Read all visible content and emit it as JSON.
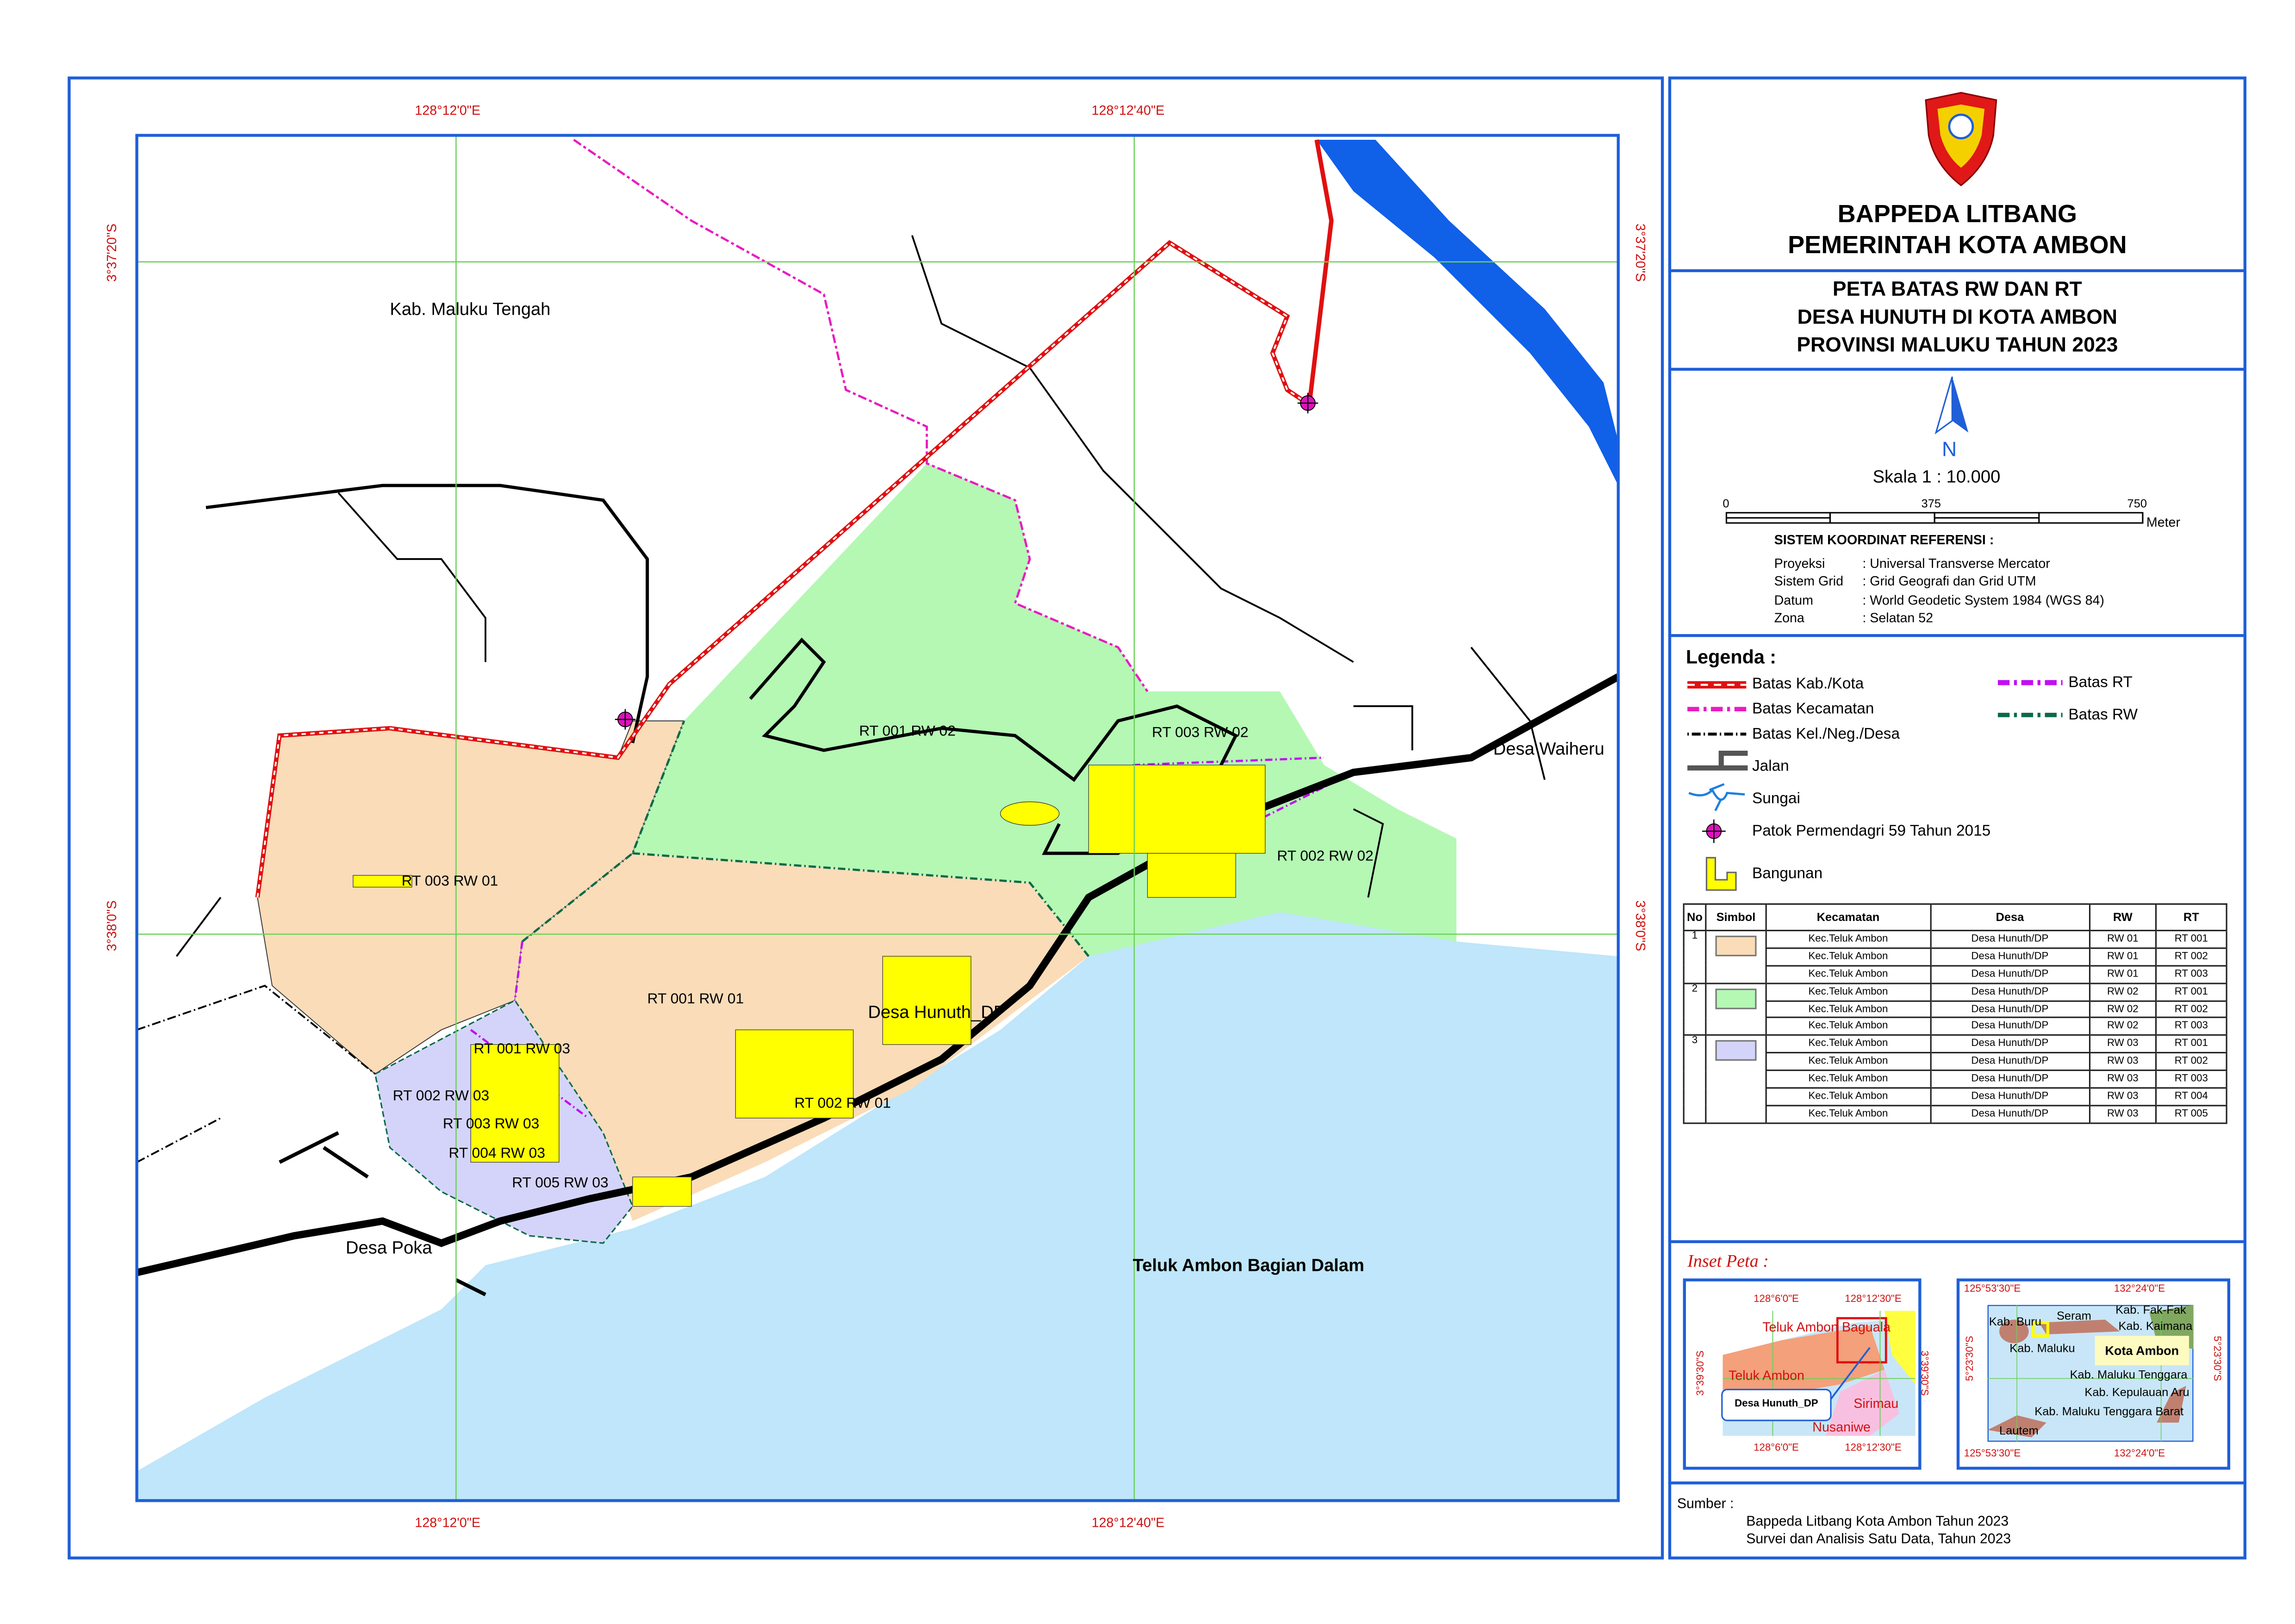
{
  "header": {
    "org_line1": "BAPPEDA LITBANG",
    "org_line2": "PEMERINTAH KOTA AMBON",
    "title_line1": "PETA BATAS RW DAN RT",
    "title_line2": "DESA HUNUTH DI KOTA AMBON",
    "title_line3": "PROVINSI MALUKU TAHUN 2023"
  },
  "north_arrow": {
    "label": "N"
  },
  "scale": {
    "text": "Skala 1 : 10.000",
    "ticks": [
      "0",
      "375",
      "750"
    ],
    "unit": "Meter"
  },
  "coord_system": {
    "heading": "SISTEM KOORDINAT REFERENSI :",
    "rows": [
      {
        "key": "Proyeksi",
        "value": ": Universal Transverse Mercator"
      },
      {
        "key": "Sistem Grid",
        "value": ": Grid Geografi dan Grid UTM"
      },
      {
        "key": "Datum",
        "value": ": World Geodetic System 1984 (WGS 84)"
      },
      {
        "key": "Zona",
        "value": ": Selatan 52"
      }
    ]
  },
  "legend": {
    "heading": "Legenda :",
    "items": [
      {
        "label": "Batas Kab./Kota",
        "icon": "red-dashed-line",
        "color": "#e01010"
      },
      {
        "label": "Batas Kecamatan",
        "icon": "magenta-dash-dot-line",
        "color": "#e81cc0"
      },
      {
        "label": "Batas Kel./Neg./Desa",
        "icon": "black-dash-dot-line",
        "color": "#000000"
      },
      {
        "label": "Jalan",
        "icon": "road",
        "color": "#555555"
      },
      {
        "label": "Sungai",
        "icon": "river",
        "color": "#1e7fe0"
      },
      {
        "label": "Patok Permendagri 59 Tahun 2015",
        "icon": "boundary-marker",
        "color": "#e010c0"
      },
      {
        "label": "Bangunan",
        "icon": "building",
        "color": "#ffff00"
      },
      {
        "label": "Batas RT",
        "icon": "purple-dash-dot-line",
        "color": "#c010f0"
      },
      {
        "label": "Batas RW",
        "icon": "green-dash-dot-line",
        "color": "#0a6a48"
      }
    ]
  },
  "table": {
    "headers": [
      "No",
      "Simbol",
      "Kecamatan",
      "Desa",
      "RW",
      "RT"
    ],
    "groups": [
      {
        "no": "1",
        "color": "#fadcb8",
        "rows": [
          [
            "Kec.Teluk Ambon",
            "Desa Hunuth/DP",
            "RW 01",
            "RT 001"
          ],
          [
            "Kec.Teluk Ambon",
            "Desa Hunuth/DP",
            "RW 01",
            "RT 002"
          ],
          [
            "Kec.Teluk Ambon",
            "Desa Hunuth/DP",
            "RW 01",
            "RT 003"
          ]
        ]
      },
      {
        "no": "2",
        "color": "#b4f8b4",
        "rows": [
          [
            "Kec.Teluk Ambon",
            "Desa Hunuth/DP",
            "RW 02",
            "RT 001"
          ],
          [
            "Kec.Teluk Ambon",
            "Desa Hunuth/DP",
            "RW 02",
            "RT 002"
          ],
          [
            "Kec.Teluk Ambon",
            "Desa Hunuth/DP",
            "RW 02",
            "RT 003"
          ]
        ]
      },
      {
        "no": "3",
        "color": "#d4d4fa",
        "rows": [
          [
            "Kec.Teluk Ambon",
            "Desa Hunuth/DP",
            "RW 03",
            "RT 001"
          ],
          [
            "Kec.Teluk Ambon",
            "Desa Hunuth/DP",
            "RW 03",
            "RT 002"
          ],
          [
            "Kec.Teluk Ambon",
            "Desa Hunuth/DP",
            "RW 03",
            "RT 003"
          ],
          [
            "Kec.Teluk Ambon",
            "Desa Hunuth/DP",
            "RW 03",
            "RT 004"
          ],
          [
            "Kec.Teluk Ambon",
            "Desa Hunuth/DP",
            "RW 03",
            "RT 005"
          ]
        ]
      }
    ]
  },
  "inset": {
    "heading": "Inset Peta :",
    "map1": {
      "lon_labels": [
        "128°6'0\"E",
        "128°12'30\"E"
      ],
      "lat_label": "3°39'30\"S",
      "places": [
        "Teluk Ambon Baguala",
        "Teluk Ambon",
        "Sirimau",
        "Nusaniwe"
      ],
      "callout": "Desa Hunuth_DP"
    },
    "map2": {
      "lon_labels": [
        "125°53'30\"E",
        "132°24'0\"E"
      ],
      "lat_label": "5°23'30\"S",
      "places": [
        "Kab. Buru",
        "Seram",
        "Kab. Fak-Fak",
        "Kab. Kaimana",
        "Kab. Maluku",
        "Kab. Maluku Tenggara",
        "Kab. Kepulauan Aru",
        "Kab. Maluku Tenggara Barat",
        "Lautem"
      ],
      "callout": "Kota Ambon"
    }
  },
  "source": {
    "heading": "Sumber :",
    "lines": [
      "Bappeda Litbang Kota Ambon Tahun 2023",
      "Survei dan Analisis Satu Data, Tahun 2023"
    ]
  },
  "map": {
    "grid": {
      "lon_labels": [
        "128°12'0\"E",
        "128°12'40\"E"
      ],
      "lat_labels": [
        "3°37'20\"S",
        "3°38'0\"S"
      ]
    },
    "labels": {
      "kab_maluku_tengah": "Kab. Maluku Tengah",
      "desa_waiheru": "Desa Waiheru",
      "desa_poka": "Desa  Poka",
      "desa_hunuth": "Desa Hunuth_DP",
      "teluk": "Teluk Ambon Bagian Dalam",
      "rt001rw02": "RT 001 RW 02",
      "rt003rw02": "RT 003 RW 02",
      "rt002rw02": "RT 002 RW 02",
      "rt003rw01": "RT 003 RW 01",
      "rt001rw01": "RT 001 RW 01",
      "rt002rw01": "RT 002 RW 01",
      "rt001rw03": "RT 001 RW 03",
      "rt002rw03": "RT 002 RW 03",
      "rt003rw03": "RT 003 RW 03",
      "rt004rw03": "RT 004 RW 03",
      "rt005rw03": "RT 005 RW 03"
    },
    "colors": {
      "rw01": "#fadcb8",
      "rw02": "#b4f8b4",
      "rw03": "#d4d4fa",
      "sea": "#bfe6fa",
      "river": "#1060e8"
    }
  }
}
